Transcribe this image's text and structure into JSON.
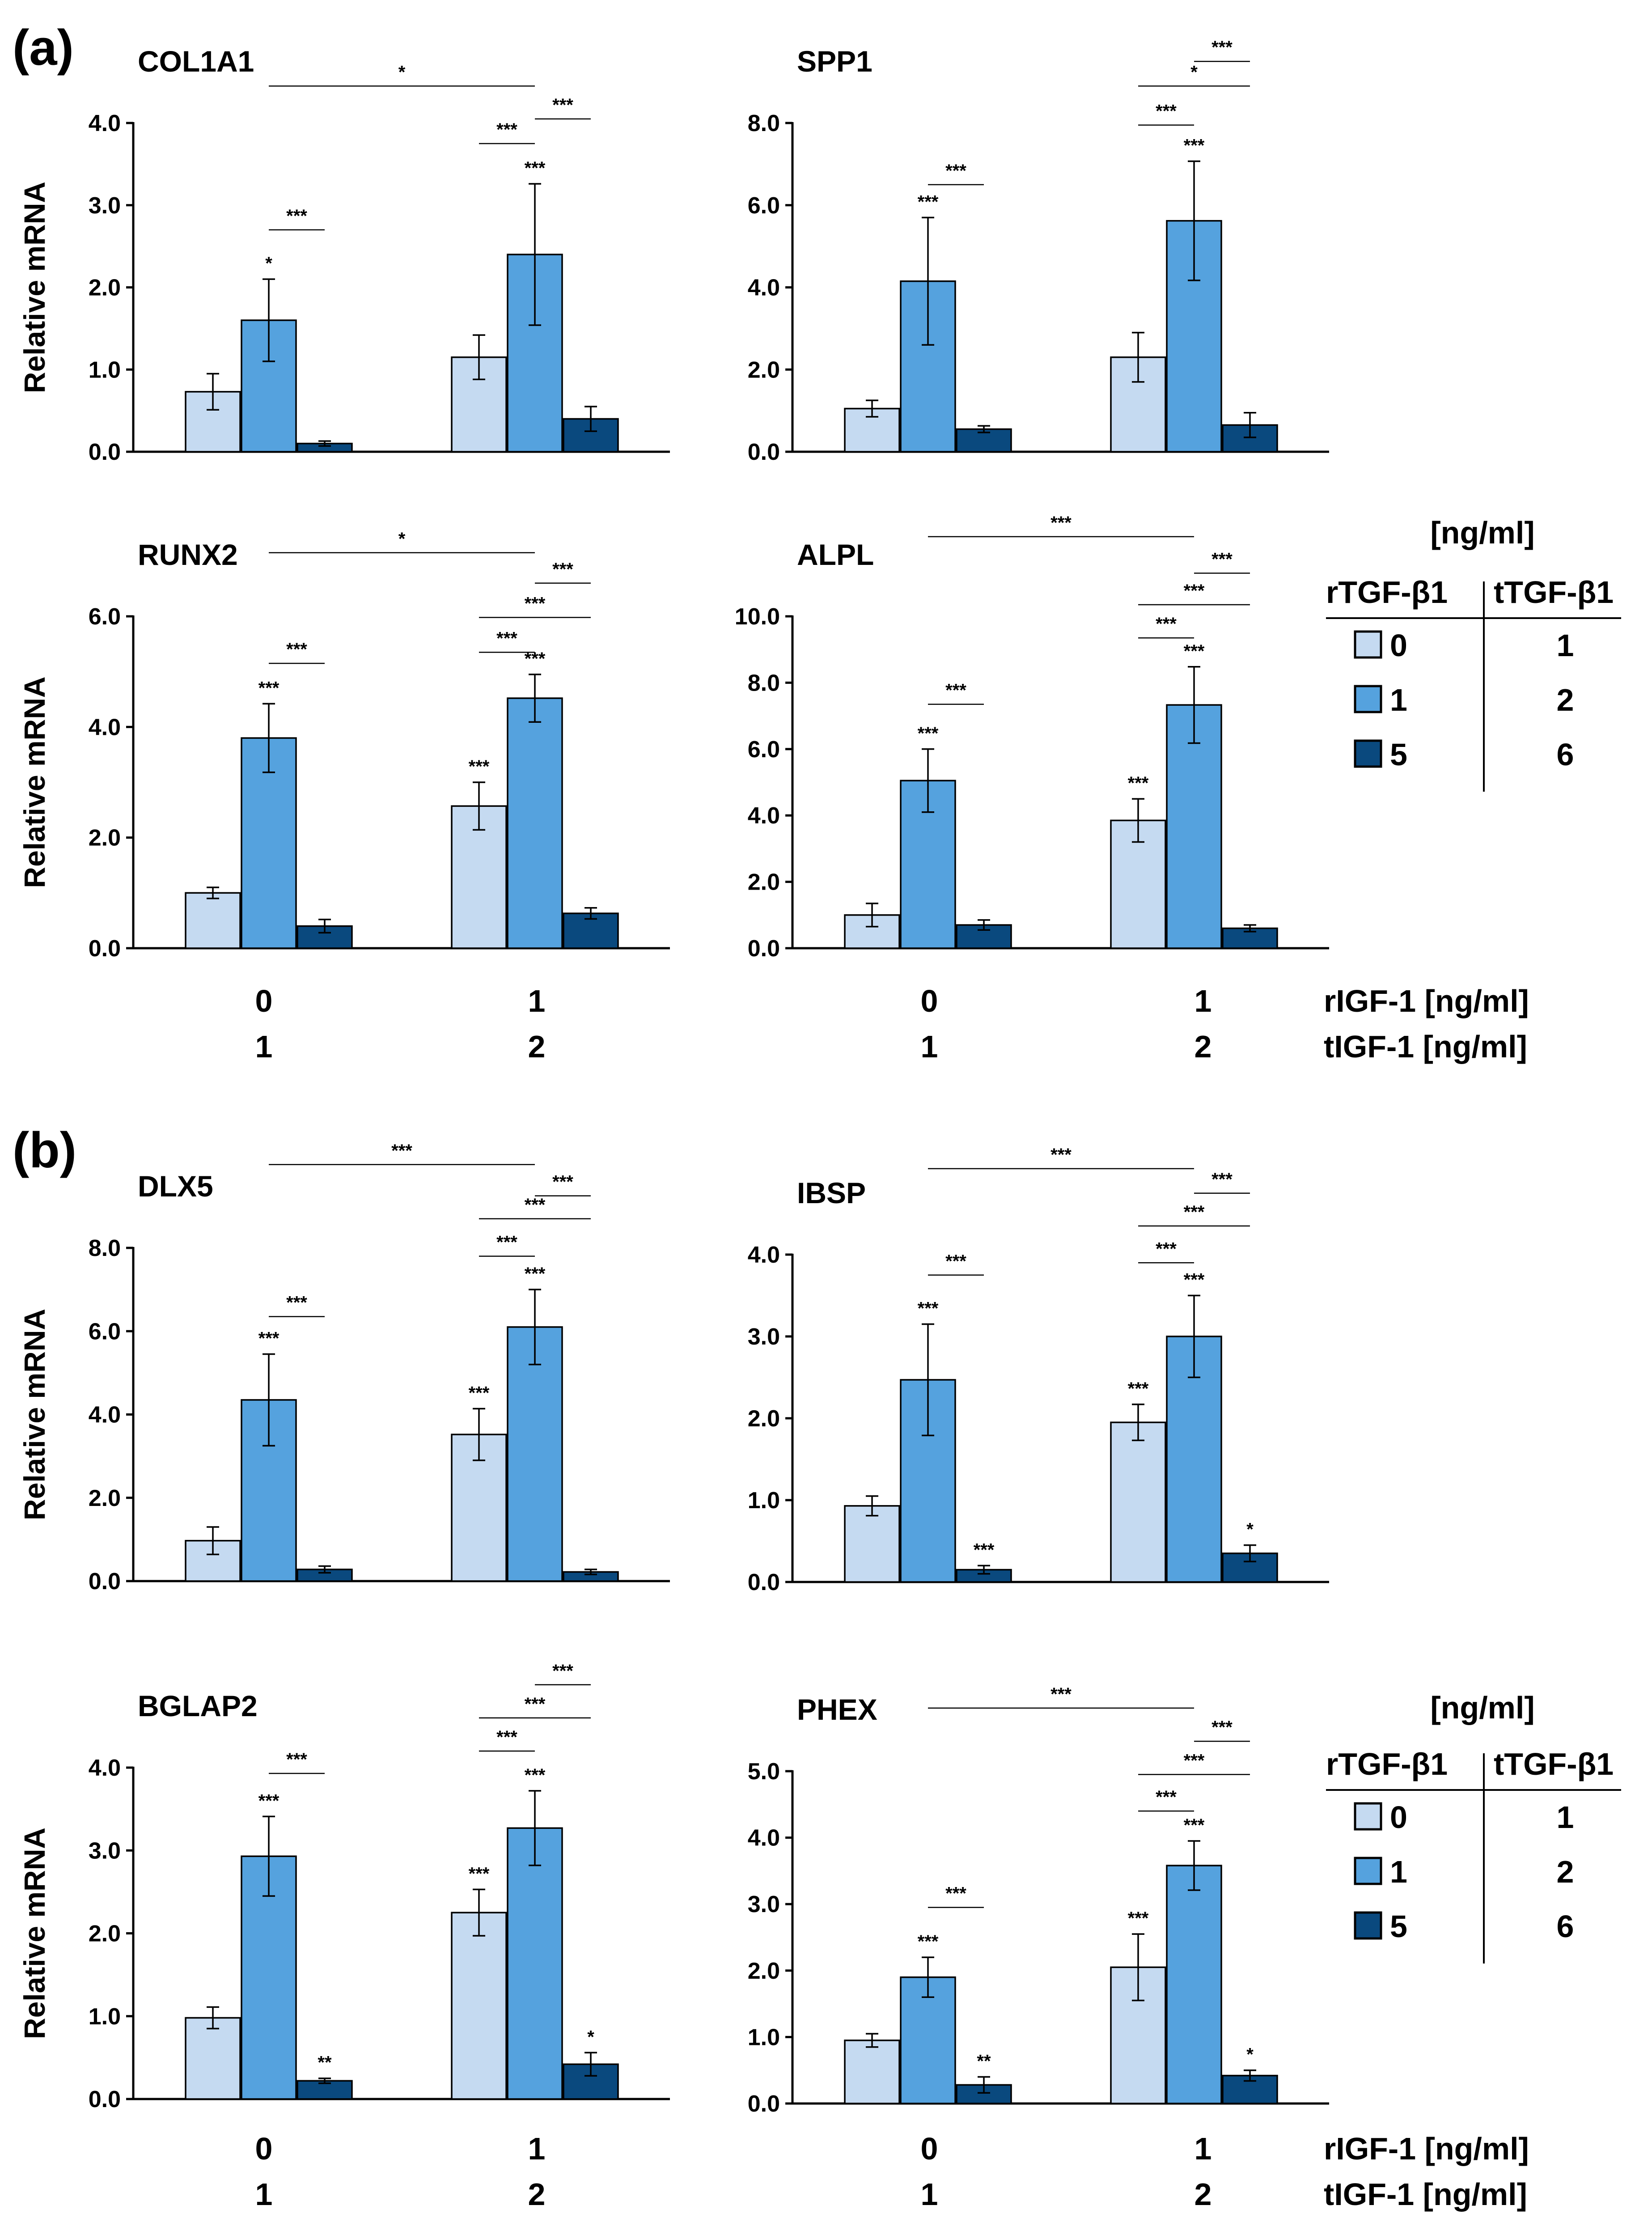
{
  "colors": {
    "0": "#c5daf1",
    "1": "#55a2de",
    "2": "#0a497e"
  },
  "panels": [
    {
      "label": "(a)"
    },
    {
      "label": "(b)"
    }
  ],
  "chart_data": [
    {
      "type": "bar",
      "title": "COL1A1",
      "ylabel": "Relative mRNA",
      "ylim": [
        0,
        4
      ],
      "yticks": [
        "0.0",
        "1.0",
        "2.0",
        "3.0",
        "4.0"
      ],
      "groups": [
        "0",
        "1"
      ],
      "series": [
        {
          "name": "rTGF-β1 0",
          "values": [
            0.73,
            1.15
          ],
          "errors": [
            0.22,
            0.27
          ],
          "labels": [
            "",
            ""
          ]
        },
        {
          "name": "rTGF-β1 1",
          "values": [
            1.6,
            2.4
          ],
          "errors": [
            0.5,
            0.86
          ],
          "labels": [
            "*",
            "***"
          ]
        },
        {
          "name": "rTGF-β1 5",
          "values": [
            0.1,
            0.4
          ],
          "errors": [
            0.03,
            0.15
          ],
          "labels": [
            "",
            ""
          ]
        }
      ],
      "brackets": [
        {
          "text": "*",
          "from": [
            0,
            1
          ],
          "to": [
            1,
            1
          ],
          "y": 4.45
        },
        {
          "text": "***",
          "from": [
            0,
            1
          ],
          "to": [
            0,
            2
          ],
          "y": 2.7
        },
        {
          "text": "***",
          "from": [
            1,
            0
          ],
          "to": [
            1,
            1
          ],
          "y": 3.75
        },
        {
          "text": "***",
          "from": [
            1,
            1
          ],
          "to": [
            1,
            2
          ],
          "y": 4.05
        }
      ]
    },
    {
      "type": "bar",
      "title": "SPP1",
      "ylabel": "",
      "ylim": [
        0,
        8
      ],
      "yticks": [
        "0.0",
        "2.0",
        "4.0",
        "6.0",
        "8.0"
      ],
      "groups": [
        "0",
        "1"
      ],
      "series": [
        {
          "name": "rTGF-β1 0",
          "values": [
            1.05,
            2.3
          ],
          "errors": [
            0.2,
            0.6
          ],
          "labels": [
            "",
            ""
          ]
        },
        {
          "name": "rTGF-β1 1",
          "values": [
            4.15,
            5.62
          ],
          "errors": [
            1.55,
            1.45
          ],
          "labels": [
            "***",
            "***"
          ]
        },
        {
          "name": "rTGF-β1 5",
          "values": [
            0.55,
            0.65
          ],
          "errors": [
            0.08,
            0.3
          ],
          "labels": [
            "",
            ""
          ]
        }
      ],
      "brackets": [
        {
          "text": "***",
          "from": [
            0,
            1
          ],
          "to": [
            0,
            2
          ],
          "y": 6.5
        },
        {
          "text": "***",
          "from": [
            1,
            0
          ],
          "to": [
            1,
            1
          ],
          "y": 7.95
        },
        {
          "text": "*",
          "from": [
            1,
            0
          ],
          "to": [
            1,
            2
          ],
          "y": 8.9
        },
        {
          "text": "***",
          "from": [
            1,
            1
          ],
          "to": [
            1,
            2
          ],
          "y": 9.5
        }
      ]
    },
    {
      "type": "bar",
      "title": "RUNX2",
      "ylabel": "Relative mRNA",
      "ylim": [
        0,
        6
      ],
      "yticks": [
        "0.0",
        "2.0",
        "4.0",
        "6.0"
      ],
      "groups": [
        "0",
        "1"
      ],
      "series": [
        {
          "name": "rTGF-β1 0",
          "values": [
            1.0,
            2.57
          ],
          "errors": [
            0.1,
            0.43
          ],
          "labels": [
            "",
            "***"
          ]
        },
        {
          "name": "rTGF-β1 1",
          "values": [
            3.8,
            4.52
          ],
          "errors": [
            0.62,
            0.43
          ],
          "labels": [
            "***",
            "***"
          ]
        },
        {
          "name": "rTGF-β1 5",
          "values": [
            0.4,
            0.63
          ],
          "errors": [
            0.12,
            0.1
          ],
          "labels": [
            "",
            ""
          ]
        }
      ],
      "brackets": [
        {
          "text": "*",
          "from": [
            0,
            1
          ],
          "to": [
            1,
            1
          ],
          "y": 7.15
        },
        {
          "text": "***",
          "from": [
            0,
            1
          ],
          "to": [
            0,
            2
          ],
          "y": 5.15
        },
        {
          "text": "***",
          "from": [
            1,
            0
          ],
          "to": [
            1,
            1
          ],
          "y": 5.35
        },
        {
          "text": "***",
          "from": [
            1,
            0
          ],
          "to": [
            1,
            2
          ],
          "y": 5.98
        },
        {
          "text": "***",
          "from": [
            1,
            1
          ],
          "to": [
            1,
            2
          ],
          "y": 6.6
        }
      ]
    },
    {
      "type": "bar",
      "title": "ALPL",
      "ylabel": "",
      "ylim": [
        0,
        10
      ],
      "yticks": [
        "0.0",
        "2.0",
        "4.0",
        "6.0",
        "8.0",
        "10.0"
      ],
      "groups": [
        "0",
        "1"
      ],
      "series": [
        {
          "name": "rTGF-β1 0",
          "values": [
            1.0,
            3.85
          ],
          "errors": [
            0.35,
            0.65
          ],
          "labels": [
            "",
            "***"
          ]
        },
        {
          "name": "rTGF-β1 1",
          "values": [
            5.05,
            7.33
          ],
          "errors": [
            0.95,
            1.15
          ],
          "labels": [
            "***",
            "***"
          ]
        },
        {
          "name": "rTGF-β1 5",
          "values": [
            0.7,
            0.6
          ],
          "errors": [
            0.15,
            0.1
          ],
          "labels": [
            "",
            ""
          ]
        }
      ],
      "brackets": [
        {
          "text": "***",
          "from": [
            0,
            1
          ],
          "to": [
            1,
            1
          ],
          "y": 12.4
        },
        {
          "text": "***",
          "from": [
            0,
            1
          ],
          "to": [
            0,
            2
          ],
          "y": 7.35
        },
        {
          "text": "***",
          "from": [
            1,
            0
          ],
          "to": [
            1,
            1
          ],
          "y": 9.35
        },
        {
          "text": "***",
          "from": [
            1,
            0
          ],
          "to": [
            1,
            2
          ],
          "y": 10.35
        },
        {
          "text": "***",
          "from": [
            1,
            1
          ],
          "to": [
            1,
            2
          ],
          "y": 11.3
        }
      ]
    },
    {
      "type": "bar",
      "title": "DLX5",
      "ylabel": "Relative mRNA",
      "ylim": [
        0,
        8
      ],
      "yticks": [
        "0.0",
        "2.0",
        "4.0",
        "6.0",
        "8.0"
      ],
      "groups": [
        "0",
        "1"
      ],
      "series": [
        {
          "name": "rTGF-β1 0",
          "values": [
            0.97,
            3.52
          ],
          "errors": [
            0.33,
            0.62
          ],
          "labels": [
            "",
            "***"
          ]
        },
        {
          "name": "rTGF-β1 1",
          "values": [
            4.35,
            6.1
          ],
          "errors": [
            1.1,
            0.9
          ],
          "labels": [
            "***",
            "***"
          ]
        },
        {
          "name": "rTGF-β1 5",
          "values": [
            0.28,
            0.22
          ],
          "errors": [
            0.08,
            0.06
          ],
          "labels": [
            "",
            ""
          ]
        }
      ],
      "brackets": [
        {
          "text": "***",
          "from": [
            0,
            1
          ],
          "to": [
            1,
            1
          ],
          "y": 10.0
        },
        {
          "text": "***",
          "from": [
            0,
            1
          ],
          "to": [
            0,
            2
          ],
          "y": 6.35
        },
        {
          "text": "***",
          "from": [
            1,
            0
          ],
          "to": [
            1,
            1
          ],
          "y": 7.8
        },
        {
          "text": "***",
          "from": [
            1,
            0
          ],
          "to": [
            1,
            2
          ],
          "y": 8.7
        },
        {
          "text": "***",
          "from": [
            1,
            1
          ],
          "to": [
            1,
            2
          ],
          "y": 9.25
        }
      ]
    },
    {
      "type": "bar",
      "title": "IBSP",
      "ylabel": "",
      "ylim": [
        0,
        4
      ],
      "yticks": [
        "0.0",
        "1.0",
        "2.0",
        "3.0",
        "4.0"
      ],
      "groups": [
        "0",
        "1"
      ],
      "series": [
        {
          "name": "rTGF-β1 0",
          "values": [
            0.93,
            1.95
          ],
          "errors": [
            0.12,
            0.22
          ],
          "labels": [
            "",
            "***"
          ]
        },
        {
          "name": "rTGF-β1 1",
          "values": [
            2.47,
            3.0
          ],
          "errors": [
            0.68,
            0.5
          ],
          "labels": [
            "***",
            "***"
          ]
        },
        {
          "name": "rTGF-β1 5",
          "values": [
            0.15,
            0.35
          ],
          "errors": [
            0.05,
            0.1
          ],
          "labels": [
            "***",
            "*"
          ]
        }
      ],
      "brackets": [
        {
          "text": "***",
          "from": [
            0,
            1
          ],
          "to": [
            1,
            1
          ],
          "y": 5.05
        },
        {
          "text": "***",
          "from": [
            0,
            1
          ],
          "to": [
            0,
            2
          ],
          "y": 3.75
        },
        {
          "text": "***",
          "from": [
            1,
            0
          ],
          "to": [
            1,
            1
          ],
          "y": 3.9
        },
        {
          "text": "***",
          "from": [
            1,
            0
          ],
          "to": [
            1,
            2
          ],
          "y": 4.35
        },
        {
          "text": "***",
          "from": [
            1,
            1
          ],
          "to": [
            1,
            2
          ],
          "y": 4.75
        }
      ]
    },
    {
      "type": "bar",
      "title": "BGLAP2",
      "ylabel": "Relative mRNA",
      "ylim": [
        0,
        4
      ],
      "yticks": [
        "0.0",
        "1.0",
        "2.0",
        "3.0",
        "4.0"
      ],
      "groups": [
        "0",
        "1"
      ],
      "series": [
        {
          "name": "rTGF-β1 0",
          "values": [
            0.98,
            2.25
          ],
          "errors": [
            0.13,
            0.28
          ],
          "labels": [
            "",
            "***"
          ]
        },
        {
          "name": "rTGF-β1 1",
          "values": [
            2.93,
            3.27
          ],
          "errors": [
            0.48,
            0.45
          ],
          "labels": [
            "***",
            "***"
          ]
        },
        {
          "name": "rTGF-β1 5",
          "values": [
            0.22,
            0.42
          ],
          "errors": [
            0.03,
            0.14
          ],
          "labels": [
            "**",
            "*"
          ]
        }
      ],
      "brackets": [
        {
          "text": "***",
          "from": [
            0,
            1
          ],
          "to": [
            0,
            2
          ],
          "y": 3.93
        },
        {
          "text": "***",
          "from": [
            1,
            0
          ],
          "to": [
            1,
            1
          ],
          "y": 4.2
        },
        {
          "text": "***",
          "from": [
            1,
            0
          ],
          "to": [
            1,
            2
          ],
          "y": 4.6
        },
        {
          "text": "***",
          "from": [
            1,
            1
          ],
          "to": [
            1,
            2
          ],
          "y": 5.0
        }
      ]
    },
    {
      "type": "bar",
      "title": "PHEX",
      "ylabel": "",
      "ylim": [
        0,
        5
      ],
      "yticks": [
        "0.0",
        "1.0",
        "2.0",
        "3.0",
        "4.0",
        "5.0"
      ],
      "groups": [
        "0",
        "1"
      ],
      "series": [
        {
          "name": "rTGF-β1 0",
          "values": [
            0.95,
            2.05
          ],
          "errors": [
            0.1,
            0.5
          ],
          "labels": [
            "",
            "***"
          ]
        },
        {
          "name": "rTGF-β1 1",
          "values": [
            1.9,
            3.58
          ],
          "errors": [
            0.3,
            0.37
          ],
          "labels": [
            "***",
            "***"
          ]
        },
        {
          "name": "rTGF-β1 5",
          "values": [
            0.28,
            0.42
          ],
          "errors": [
            0.12,
            0.08
          ],
          "labels": [
            "**",
            "*"
          ]
        }
      ],
      "brackets": [
        {
          "text": "***",
          "from": [
            0,
            1
          ],
          "to": [
            1,
            1
          ],
          "y": 5.95
        },
        {
          "text": "***",
          "from": [
            0,
            1
          ],
          "to": [
            0,
            2
          ],
          "y": 2.95
        },
        {
          "text": "***",
          "from": [
            1,
            0
          ],
          "to": [
            1,
            1
          ],
          "y": 4.4
        },
        {
          "text": "***",
          "from": [
            1,
            0
          ],
          "to": [
            1,
            2
          ],
          "y": 4.95
        },
        {
          "text": "***",
          "from": [
            1,
            1
          ],
          "to": [
            1,
            2
          ],
          "y": 5.45
        }
      ]
    }
  ],
  "xaxis": {
    "rigf_values": [
      "0",
      "1"
    ],
    "tigf_values": [
      "1",
      "2"
    ],
    "rigf_label": "rIGF-1 [ng/ml]",
    "tigf_label": "tIGF-1 [ng/ml]"
  },
  "legend": {
    "unit": "[ng/ml]",
    "col1_header": "rTGF-β1",
    "col2_header": "tTGF-β1",
    "rows": [
      {
        "r": "0",
        "t": "1",
        "color": "#c5daf1"
      },
      {
        "r": "1",
        "t": "2",
        "color": "#55a2de"
      },
      {
        "r": "5",
        "t": "6",
        "color": "#0a497e"
      }
    ]
  }
}
